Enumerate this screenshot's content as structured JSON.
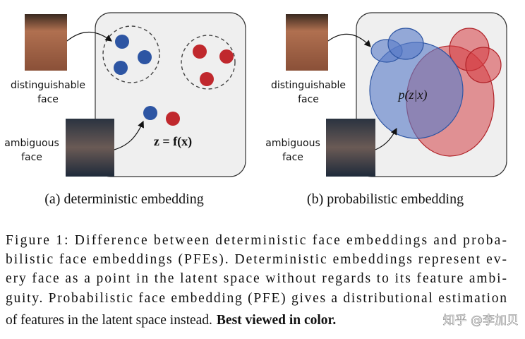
{
  "panel_a": {
    "face_top_label": [
      "distinguishable",
      "face"
    ],
    "face_bottom_label": [
      "ambiguous",
      "face"
    ],
    "formula": "z = f(x)",
    "subcaption": "(a) deterministic embedding"
  },
  "panel_b": {
    "face_top_label": [
      "distinguishable",
      "face"
    ],
    "face_bottom_label": [
      "ambiguous",
      "face"
    ],
    "formula": "p(z|x)",
    "subcaption": "(b) probabilistic embedding"
  },
  "caption": {
    "lines": [
      "Figure 1: Difference between deterministic face embeddings and proba-",
      "bilistic face embeddings (PFEs). Deterministic embeddings represent ev-",
      "ery face as a point in the latent space without regards to its feature ambi-",
      "guity. Probabilistic face embedding (PFE) gives a distributional estimation",
      "of features in the latent space instead."
    ],
    "bold": "Best viewed in color."
  },
  "watermark": "知乎 @李加贝"
}
